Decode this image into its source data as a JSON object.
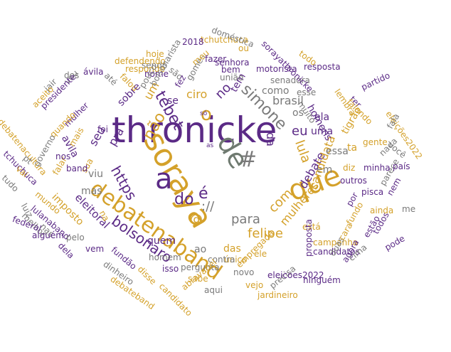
{
  "colors": {
    "purple": "#5b2a86",
    "gold": "#d4a12a",
    "gray": "#7a7a7a",
    "olive": "#6f7a70"
  },
  "words": [
    {
      "text": "thronicke",
      "color": "purple"
    },
    {
      "text": "soraya",
      "color": "gold"
    },
    {
      "text": "que",
      "color": "gold"
    },
    {
      "text": "de",
      "color": "olive"
    },
    {
      "text": "a",
      "color": "purple"
    },
    {
      "text": "o",
      "color": "gold"
    },
    {
      "text": "#",
      "color": "gray"
    },
    {
      "text": "é",
      "color": "purple"
    },
    {
      "text": "debatenaband",
      "color": "gold"
    },
    {
      "text": "https",
      "color": "purple"
    },
    {
      "text": "do",
      "color": "purple"
    },
    {
      "text": "não",
      "color": "gold"
    },
    {
      "text": "tebet",
      "color": "purple"
    },
    {
      "text": "simone",
      "color": "gray"
    },
    {
      "text": "bolsonaro",
      "color": "purple"
    },
    {
      "text": "com",
      "color": "gold"
    },
    {
      "text": "para",
      "color": "gray"
    },
    {
      "text": "lula",
      "color": "gold"
    },
    {
      "text": "no",
      "color": "purple"
    },
    {
      "text": "tem",
      "color": "purple"
    },
    {
      "text": "da",
      "color": "purple"
    },
    {
      "text": "eu",
      "color": "purple"
    },
    {
      "text": "uma",
      "color": "purple"
    },
    {
      "text": "debate",
      "color": "purple"
    },
    {
      "text": "ciro",
      "color": "gold"
    },
    {
      "text": "um",
      "color": "gold"
    },
    {
      "text": "pra",
      "color": "purple"
    },
    {
      "text": "seu",
      "color": "purple"
    },
    {
      "text": "://",
      "color": "gray"
    },
    {
      "text": "@",
      "color": "gold"
    },
    {
      "text": "em",
      "color": "gray"
    },
    {
      "text": "candidata",
      "color": "gold"
    },
    {
      "text": "mulheres",
      "color": "gold"
    },
    {
      "text": "felipe",
      "color": "gold"
    },
    {
      "text": "eleitoral",
      "color": "purple"
    },
    {
      "text": "imposto",
      "color": "gold"
    },
    {
      "text": "sobre",
      "color": "purple"
    },
    {
      "text": "brasil",
      "color": "gray"
    },
    {
      "text": "como",
      "color": "gray"
    },
    {
      "text": "das",
      "color": "gold"
    },
    {
      "text": "quem",
      "color": "purple"
    },
    {
      "text": "mas",
      "color": "gray"
    },
    {
      "text": "viu",
      "color": "gray"
    },
    {
      "text": "avila",
      "color": "purple"
    },
    {
      "text": "ela",
      "color": "purple"
    },
    {
      "text": "essa",
      "color": "gray"
    },
    {
      "text": "ta",
      "color": "gold"
    },
    {
      "text": "tigrão",
      "color": "gold"
    },
    {
      "text": "os",
      "color": "gray"
    },
    {
      "text": "homens",
      "color": "purple"
    },
    {
      "text": "se",
      "color": "purple"
    },
    {
      "text": "ao",
      "color": "gray"
    },
    {
      "text": "homem",
      "color": "gray"
    },
    {
      "text": "pergunta",
      "color": "gray"
    },
    {
      "text": "único",
      "color": "gold"
    },
    {
      "text": "isso",
      "color": "purple"
    },
    {
      "text": "novo",
      "color": "gray"
    },
    {
      "text": "contra",
      "color": "gray"
    },
    {
      "text": "ele",
      "color": "gold"
    },
    {
      "text": "empregada",
      "color": "gold"
    },
    {
      "text": "está",
      "color": "gold"
    },
    {
      "text": "diz",
      "color": "gold"
    },
    {
      "text": "outros",
      "color": "purple"
    },
    {
      "text": "por",
      "color": "purple"
    },
    {
      "text": "fundo",
      "color": "gold"
    },
    {
      "text": "na",
      "color": "gold"
    },
    {
      "text": "foi",
      "color": "purple"
    },
    {
      "text": "sua",
      "color": "gold"
    },
    {
      "text": "fundão",
      "color": "purple"
    },
    {
      "text": "lulanaband",
      "color": "purple"
    },
    {
      "text": "mulher",
      "color": "purple"
    },
    {
      "text": "quando",
      "color": "gold"
    },
    {
      "text": "mais",
      "color": "gold"
    },
    {
      "text": "falar",
      "color": "gold"
    },
    {
      "text": "mundo",
      "color": "gold"
    },
    {
      "text": "governo",
      "color": "gray"
    },
    {
      "text": "gomes",
      "color": "gray"
    },
    {
      "text": "nome",
      "color": "purple"
    },
    {
      "text": "são",
      "color": "gray"
    },
    {
      "text": "sendo",
      "color": "gray"
    },
    {
      "text": "meu",
      "color": "gold"
    },
    {
      "text": "bem",
      "color": "purple"
    },
    {
      "text": "motorista",
      "color": "purple"
    },
    {
      "text": "união",
      "color": "gray"
    },
    {
      "text": "senadora",
      "color": "gray"
    },
    {
      "text": "esse",
      "color": "gray"
    },
    {
      "text": "muito",
      "color": "gray"
    },
    {
      "text": "ter",
      "color": "purple"
    },
    {
      "text": "lembra",
      "color": "gold"
    },
    {
      "text": "falando",
      "color": "gold"
    },
    {
      "text": "partido",
      "color": "purple"
    },
    {
      "text": "eleições2022",
      "color": "gold"
    },
    {
      "text": "todo",
      "color": "gold"
    },
    {
      "text": "sorayathronicke",
      "color": "purple"
    },
    {
      "text": "resposta",
      "color": "purple"
    },
    {
      "text": "ou",
      "color": "gold"
    },
    {
      "text": "fazer",
      "color": "purple"
    },
    {
      "text": "senhora",
      "color": "purple"
    },
    {
      "text": "tchutchuca",
      "color": "gold"
    },
    {
      "text": "2018",
      "color": "purple"
    },
    {
      "text": "hoje",
      "color": "gold"
    },
    {
      "text": "doméstica",
      "color": "gray"
    },
    {
      "text": "defendendo",
      "color": "gold"
    },
    {
      "text": "responde",
      "color": "gold"
    },
    {
      "text": "falou",
      "color": "gold"
    },
    {
      "text": "até",
      "color": "gray"
    },
    {
      "text": "ávila",
      "color": "purple"
    },
    {
      "text": "dos",
      "color": "gray"
    },
    {
      "text": "vou",
      "color": "gray"
    },
    {
      "text": "jair",
      "color": "gray"
    },
    {
      "text": "presidente",
      "color": "purple"
    },
    {
      "text": "aceito",
      "color": "gold"
    },
    {
      "text": "debatenacultura",
      "color": "gold"
    },
    {
      "text": "nos",
      "color": "purple"
    },
    {
      "text": "band",
      "color": "purple"
    },
    {
      "text": "tchuchuca",
      "color": "purple"
    },
    {
      "text": "pt",
      "color": "gray"
    },
    {
      "text": "vai",
      "color": "gold"
    },
    {
      "text": "tudo",
      "color": "gray"
    },
    {
      "text": "luiz",
      "color": "gray"
    },
    {
      "text": "melhor",
      "color": "gray"
    },
    {
      "text": "federal",
      "color": "purple"
    },
    {
      "text": "nas",
      "color": "gray"
    },
    {
      "text": "pelo",
      "color": "gray"
    },
    {
      "text": "alguém",
      "color": "purple"
    },
    {
      "text": "dela",
      "color": "purple"
    },
    {
      "text": "vem",
      "color": "purple"
    },
    {
      "text": "dinheiro",
      "color": "gray"
    },
    {
      "text": "debateband",
      "color": "gold"
    },
    {
      "text": "disse",
      "color": "gold"
    },
    {
      "text": "candidato",
      "color": "gold"
    },
    {
      "text": "abravanel",
      "color": "gold"
    },
    {
      "text": "sabe",
      "color": "gold"
    },
    {
      "text": "aqui",
      "color": "gray"
    },
    {
      "text": "vejo",
      "color": "gold"
    },
    {
      "text": "jardineiro",
      "color": "gold"
    },
    {
      "text": "precisa",
      "color": "gray"
    },
    {
      "text": "eleicoes2022",
      "color": "purple"
    },
    {
      "text": "ninguém",
      "color": "purple"
    },
    {
      "text": "proposta",
      "color": "purple"
    },
    {
      "text": "candidatos",
      "color": "purple"
    },
    {
      "text": "campanha",
      "color": "gold"
    },
    {
      "text": "duas",
      "color": "gray"
    },
    {
      "text": "agora",
      "color": "purple"
    },
    {
      "text": "cima",
      "color": "gray"
    },
    {
      "text": "cara",
      "color": "gold"
    },
    {
      "text": "estão",
      "color": "purple"
    },
    {
      "text": "todos",
      "color": "purple"
    },
    {
      "text": "pode",
      "color": "purple"
    },
    {
      "text": "ainda",
      "color": "gold"
    },
    {
      "text": "pisca",
      "color": "purple"
    },
    {
      "text": "parece",
      "color": "gray"
    },
    {
      "text": "nem",
      "color": "purple"
    },
    {
      "text": "país",
      "color": "purple"
    },
    {
      "text": "minha",
      "color": "purple"
    },
    {
      "text": "gente",
      "color": "gold"
    },
    {
      "text": "nada",
      "color": "gray"
    },
    {
      "text": "você",
      "color": "gray"
    },
    {
      "text": "fala",
      "color": "gray"
    },
    {
      "text": "me",
      "color": "gray"
    },
    {
      "text": "pouco",
      "color": "gray"
    },
    {
      "text": "fez",
      "color": "purple"
    },
    {
      "text": "bolsonarista",
      "color": "gray"
    },
    {
      "text": "as",
      "color": "purple"
    },
    {
      "text": "só",
      "color": "purple"
    },
    {
      "text": "ser",
      "color": "gold"
    },
    {
      "text": "sem",
      "color": "gold"
    },
    {
      "text": "já",
      "color": "gray"
    }
  ]
}
